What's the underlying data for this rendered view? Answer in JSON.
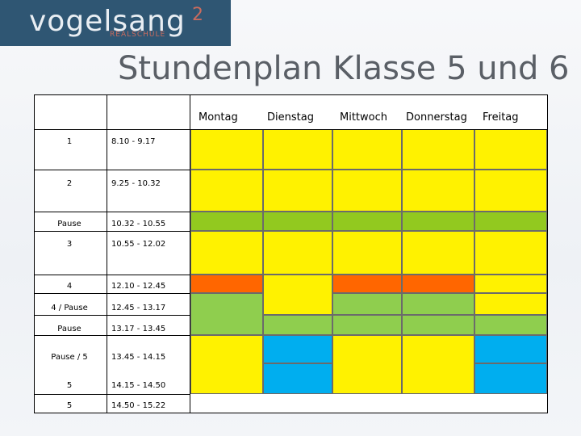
{
  "logo": {
    "wordmark": "vogelsang",
    "superscript": "2",
    "subtitle": "REALSCHULE"
  },
  "title": "Stundenplan Klasse 5 und 6",
  "days": [
    "Montag",
    "Dienstag",
    "Mittwoch",
    "Donnerstag",
    "Freitag"
  ],
  "periods": [
    {
      "label": "1",
      "time": "8.10 - 9.17"
    },
    {
      "label": "2",
      "time": "9.25 - 10.32"
    },
    {
      "label": "Pause",
      "time": "10.32 - 10.55"
    },
    {
      "label": "3",
      "time": "10.55 - 12.02"
    },
    {
      "label": "4",
      "time": "12.10 - 12.45"
    },
    {
      "label": "4 / Pause",
      "time": "12.45 - 13.17"
    },
    {
      "label": "Pause",
      "time": "13.17 - 13.45"
    },
    {
      "label": "Pause / 5",
      "time": "13.45 - 14.15"
    },
    {
      "label": "5",
      "time": "14.15 - 14.50"
    },
    {
      "label": "5",
      "time": "14.50 - 15.22"
    }
  ],
  "colors": {
    "lesson": "#fff200",
    "pause": "#92c91f",
    "pause_alt": "#8fce4e",
    "lunch": "#ff6600",
    "blue": "#00aeef",
    "logo_bg": "#2f5673"
  }
}
